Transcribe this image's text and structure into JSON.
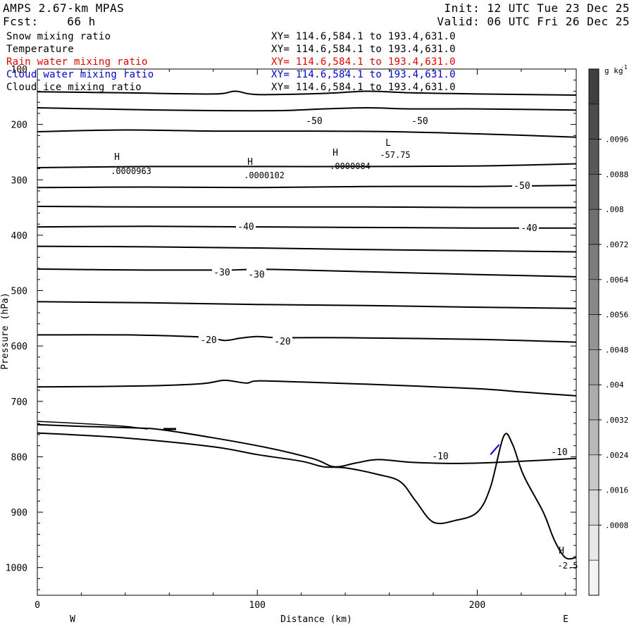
{
  "header": {
    "model": "AMPS 2.67-km MPAS",
    "forecast": "Fcst:    66 h",
    "init": "Init: 12 UTC Tue 23 Dec 25",
    "valid": "Valid: 06 UTC Fri 26 Dec 25"
  },
  "fields": [
    {
      "name": "Snow mixing ratio",
      "xy": "XY= 114.6,584.1 to 193.4,631.0",
      "color": "#000000"
    },
    {
      "name": "Temperature",
      "xy": "XY= 114.6,584.1 to 193.4,631.0",
      "color": "#000000"
    },
    {
      "name": "Rain water mixing ratio",
      "xy": "XY= 114.6,584.1 to 193.4,631.0",
      "color": "#e00000"
    },
    {
      "name": "Cloud water mixing ratio",
      "xy": "XY= 114.6,584.1 to 193.4,631.0",
      "color": "#0000cc"
    },
    {
      "name": "Cloud ice mixing ratio",
      "xy": "XY= 114.6,584.1 to 193.4,631.0",
      "color": "#000000"
    }
  ],
  "chart_data": {
    "type": "cross-section contour",
    "xlabel": "Distance (km)",
    "ylabel": "Pressure (hPa)",
    "xlim": [
      0,
      245
    ],
    "ylim": [
      1050,
      100
    ],
    "x_ticks": [
      0,
      100,
      200
    ],
    "y_ticks": [
      100,
      200,
      300,
      400,
      500,
      600,
      700,
      800,
      900,
      1000
    ],
    "west_label": "W",
    "east_label": "E",
    "colorbar": {
      "unit": "g kg",
      "unit_exp": "-1",
      "labels": [
        ".0096",
        ".0088",
        ".008",
        ".0072",
        ".0064",
        ".0056",
        ".0048",
        ".004",
        ".0032",
        ".0024",
        ".0016",
        ".0008"
      ],
      "shades": [
        "#404040",
        "#4c4c4c",
        "#585858",
        "#646464",
        "#707070",
        "#7c7c7c",
        "#888888",
        "#949494",
        "#a0a0a0",
        "#acacac",
        "#b8b8b8",
        "#c8c8c8",
        "#d8d8d8",
        "#e8e8e8",
        "#f4f4f4"
      ]
    },
    "temperature_contours": [
      {
        "id": "t1",
        "points": [
          [
            0,
            141
          ],
          [
            40,
            143
          ],
          [
            80,
            145
          ],
          [
            90,
            140
          ],
          [
            100,
            146
          ],
          [
            130,
            144
          ],
          [
            150,
            140
          ],
          [
            170,
            143
          ],
          [
            200,
            145
          ],
          [
            245,
            147
          ]
        ]
      },
      {
        "id": "t2",
        "points": [
          [
            0,
            170
          ],
          [
            40,
            173
          ],
          [
            80,
            175
          ],
          [
            110,
            175
          ],
          [
            130,
            172
          ],
          [
            150,
            170
          ],
          [
            170,
            172
          ],
          [
            200,
            172
          ],
          [
            245,
            174
          ]
        ]
      },
      {
        "id": "t3",
        "points": [
          [
            0,
            213
          ],
          [
            40,
            210
          ],
          [
            80,
            212
          ],
          [
            120,
            212
          ],
          [
            160,
            213
          ],
          [
            200,
            217
          ],
          [
            245,
            223
          ]
        ]
      },
      {
        "id": "t4",
        "points": [
          [
            0,
            278
          ],
          [
            50,
            276
          ],
          [
            100,
            276
          ],
          [
            150,
            276
          ],
          [
            200,
            275
          ],
          [
            245,
            271
          ]
        ]
      },
      {
        "id": "t5",
        "points": [
          [
            0,
            314
          ],
          [
            50,
            313
          ],
          [
            100,
            314
          ],
          [
            150,
            312
          ],
          [
            200,
            312
          ],
          [
            245,
            310
          ]
        ]
      },
      {
        "id": "t6",
        "points": [
          [
            0,
            348
          ],
          [
            50,
            349
          ],
          [
            100,
            349
          ],
          [
            150,
            349
          ],
          [
            200,
            350
          ],
          [
            245,
            350
          ]
        ]
      },
      {
        "id": "t7",
        "points": [
          [
            0,
            385
          ],
          [
            50,
            384
          ],
          [
            100,
            385
          ],
          [
            150,
            386
          ],
          [
            200,
            387
          ],
          [
            245,
            387
          ]
        ]
      },
      {
        "id": "t8",
        "points": [
          [
            0,
            420
          ],
          [
            50,
            421
          ],
          [
            100,
            423
          ],
          [
            150,
            426
          ],
          [
            200,
            428
          ],
          [
            245,
            430
          ]
        ]
      },
      {
        "id": "t9",
        "points": [
          [
            0,
            461
          ],
          [
            50,
            463
          ],
          [
            85,
            463
          ],
          [
            95,
            462
          ],
          [
            110,
            462
          ],
          [
            150,
            466
          ],
          [
            200,
            471
          ],
          [
            245,
            475
          ]
        ]
      },
      {
        "id": "t10",
        "points": [
          [
            0,
            520
          ],
          [
            50,
            522
          ],
          [
            100,
            525
          ],
          [
            150,
            527
          ],
          [
            200,
            530
          ],
          [
            245,
            532
          ]
        ]
      },
      {
        "id": "t11",
        "points": [
          [
            0,
            580
          ],
          [
            40,
            580
          ],
          [
            75,
            584
          ],
          [
            85,
            590
          ],
          [
            92,
            586
          ],
          [
            100,
            583
          ],
          [
            110,
            585
          ],
          [
            140,
            585
          ],
          [
            200,
            588
          ],
          [
            245,
            593
          ]
        ]
      },
      {
        "id": "t12",
        "points": [
          [
            0,
            674
          ],
          [
            50,
            672
          ],
          [
            75,
            668
          ],
          [
            85,
            662
          ],
          [
            95,
            667
          ],
          [
            100,
            663
          ],
          [
            120,
            665
          ],
          [
            150,
            669
          ],
          [
            200,
            677
          ],
          [
            220,
            683
          ],
          [
            245,
            690
          ]
        ]
      },
      {
        "id": "t13",
        "points": [
          [
            0,
            742
          ],
          [
            20,
            745
          ],
          [
            45,
            748
          ],
          [
            60,
            753
          ],
          [
            100,
            780
          ],
          [
            125,
            803
          ],
          [
            135,
            818
          ],
          [
            145,
            811
          ],
          [
            155,
            805
          ],
          [
            170,
            810
          ],
          [
            190,
            812
          ],
          [
            210,
            810
          ],
          [
            245,
            803
          ]
        ]
      }
    ],
    "temperature_labels": [
      "-50",
      "-50",
      "-50",
      "-40",
      "-40",
      "-30",
      "-30",
      "-20",
      "-20",
      "-10",
      "-10"
    ],
    "extrema": [
      {
        "type": "H",
        "value": ".0000963"
      },
      {
        "type": "H",
        "value": ".0000102"
      },
      {
        "type": "H",
        "value": ".0000084"
      },
      {
        "type": "L",
        "value": "-57.75"
      },
      {
        "type": "H",
        "value": "-2.5"
      }
    ],
    "terrain": [
      [
        0,
        757
      ],
      [
        40,
        766
      ],
      [
        80,
        782
      ],
      [
        100,
        796
      ],
      [
        120,
        808
      ],
      [
        130,
        818
      ],
      [
        140,
        820
      ],
      [
        155,
        832
      ],
      [
        165,
        845
      ],
      [
        172,
        880
      ],
      [
        180,
        918
      ],
      [
        190,
        915
      ],
      [
        200,
        900
      ],
      [
        206,
        855
      ],
      [
        212,
        763
      ],
      [
        216,
        777
      ],
      [
        221,
        833
      ],
      [
        230,
        900
      ],
      [
        235,
        950
      ],
      [
        240,
        982
      ],
      [
        245,
        982
      ]
    ],
    "terrain_upper": [
      [
        0,
        736
      ],
      [
        20,
        740
      ],
      [
        40,
        745
      ],
      [
        50,
        750
      ]
    ],
    "cloud_water_fragment": [
      [
        206,
        796
      ],
      [
        210,
        778
      ]
    ]
  }
}
